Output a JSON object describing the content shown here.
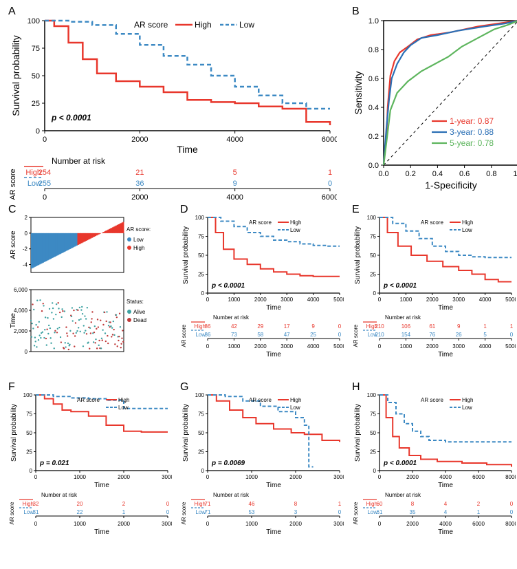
{
  "colors": {
    "high": "#e8372c",
    "low": "#3c89c3",
    "axis": "#000000",
    "bg": "#ffffff",
    "dash_low": "#3c89c3",
    "roc1": "#e8372c",
    "roc3": "#2a6fb5",
    "roc5": "#5db55d",
    "diag": "#000000",
    "alive": "#3ea2a2",
    "dead": "#c03a3a"
  },
  "fonts": {
    "axis_label": 14,
    "tick": 11,
    "legend": 12,
    "small_axis": 10,
    "small_tick": 8,
    "panel_label": 16,
    "pval": 12
  },
  "panelA": {
    "label": "A",
    "ylabel": "Survival probability",
    "xlabel": "Time",
    "legend_title": "AR score",
    "legend_items": [
      "High",
      "Low"
    ],
    "pval": "p < 0.0001",
    "xlim": [
      0,
      6000
    ],
    "xticks": [
      0,
      2000,
      4000,
      6000
    ],
    "ylim": [
      0,
      100
    ],
    "yticks": [
      0,
      25,
      50,
      75,
      100
    ],
    "curve_high": [
      [
        0,
        100
      ],
      [
        200,
        95
      ],
      [
        500,
        80
      ],
      [
        800,
        65
      ],
      [
        1100,
        52
      ],
      [
        1500,
        45
      ],
      [
        2000,
        40
      ],
      [
        2500,
        35
      ],
      [
        3000,
        28
      ],
      [
        3500,
        26
      ],
      [
        4000,
        25
      ],
      [
        4500,
        22
      ],
      [
        5000,
        20
      ],
      [
        5500,
        8
      ],
      [
        6000,
        5
      ]
    ],
    "curve_low": [
      [
        0,
        100
      ],
      [
        500,
        99
      ],
      [
        1000,
        96
      ],
      [
        1500,
        88
      ],
      [
        2000,
        78
      ],
      [
        2500,
        68
      ],
      [
        3000,
        60
      ],
      [
        3500,
        50
      ],
      [
        4000,
        40
      ],
      [
        4500,
        32
      ],
      [
        5000,
        25
      ],
      [
        5500,
        20
      ],
      [
        6000,
        20
      ]
    ],
    "risk_title": "Number at risk",
    "risk_x": [
      0,
      2000,
      4000,
      6000
    ],
    "risk_high": [
      254,
      21,
      5,
      1
    ],
    "risk_low": [
      255,
      36,
      9,
      0
    ]
  },
  "panelB": {
    "label": "B",
    "ylabel": "Sensitivity",
    "xlabel": "1-Specificity",
    "xlim": [
      0,
      1
    ],
    "ylim": [
      0,
      1
    ],
    "xticks": [
      0.0,
      0.2,
      0.4,
      0.6,
      0.8,
      1.0
    ],
    "yticks": [
      0.0,
      0.2,
      0.4,
      0.6,
      0.8,
      1.0
    ],
    "legend": [
      {
        "label": "1-year: 0.87",
        "color_key": "roc1"
      },
      {
        "label": "3-year: 0.88",
        "color_key": "roc3"
      },
      {
        "label": "5-year: 0.78",
        "color_key": "roc5"
      }
    ],
    "roc1": [
      [
        0,
        0
      ],
      [
        0.02,
        0.18
      ],
      [
        0.03,
        0.4
      ],
      [
        0.05,
        0.62
      ],
      [
        0.08,
        0.72
      ],
      [
        0.12,
        0.78
      ],
      [
        0.18,
        0.82
      ],
      [
        0.25,
        0.87
      ],
      [
        0.35,
        0.9
      ],
      [
        0.5,
        0.92
      ],
      [
        0.7,
        0.96
      ],
      [
        0.85,
        0.98
      ],
      [
        1.0,
        1.0
      ]
    ],
    "roc3": [
      [
        0,
        0
      ],
      [
        0.02,
        0.25
      ],
      [
        0.04,
        0.45
      ],
      [
        0.06,
        0.6
      ],
      [
        0.1,
        0.7
      ],
      [
        0.15,
        0.78
      ],
      [
        0.2,
        0.83
      ],
      [
        0.28,
        0.88
      ],
      [
        0.4,
        0.9
      ],
      [
        0.55,
        0.93
      ],
      [
        0.75,
        0.96
      ],
      [
        0.9,
        0.98
      ],
      [
        1.0,
        1.0
      ]
    ],
    "roc5": [
      [
        0,
        0
      ],
      [
        0.02,
        0.15
      ],
      [
        0.05,
        0.38
      ],
      [
        0.1,
        0.5
      ],
      [
        0.18,
        0.58
      ],
      [
        0.28,
        0.65
      ],
      [
        0.38,
        0.7
      ],
      [
        0.48,
        0.75
      ],
      [
        0.58,
        0.82
      ],
      [
        0.7,
        0.88
      ],
      [
        0.82,
        0.94
      ],
      [
        0.92,
        0.97
      ],
      [
        1.0,
        1.0
      ]
    ]
  },
  "panelC": {
    "label": "C",
    "top": {
      "ylabel": "AR score",
      "ylim": [
        -5,
        2
      ],
      "yticks": [
        -4,
        -2,
        0,
        2
      ],
      "legend_title": "AR score:",
      "legend_items": [
        "Low",
        "High"
      ],
      "split": 0.5
    },
    "bottom": {
      "ylabel": "Time",
      "ylim": [
        0,
        6000
      ],
      "yticks": [
        0,
        2000,
        4000,
        6000
      ],
      "legend_title": "Status:",
      "legend_items": [
        "Alive",
        "Dead"
      ]
    }
  },
  "smallKM": {
    "ylabel": "Survival probability",
    "xlabel": "Time",
    "legend_title": "AR score",
    "legend_items": [
      "High",
      "Low"
    ],
    "ylim": [
      0,
      100
    ],
    "yticks": [
      0,
      25,
      50,
      75,
      100
    ]
  },
  "panelD": {
    "label": "D",
    "pval": "p < 0.0001",
    "xlim": [
      0,
      5000
    ],
    "xticks": [
      0,
      1000,
      2000,
      3000,
      4000,
      5000
    ],
    "curve_high": [
      [
        0,
        100
      ],
      [
        300,
        80
      ],
      [
        600,
        58
      ],
      [
        1000,
        45
      ],
      [
        1500,
        38
      ],
      [
        2000,
        32
      ],
      [
        2500,
        28
      ],
      [
        3000,
        25
      ],
      [
        3500,
        23
      ],
      [
        4000,
        22
      ],
      [
        4500,
        22
      ],
      [
        5000,
        22
      ]
    ],
    "curve_low": [
      [
        0,
        100
      ],
      [
        500,
        95
      ],
      [
        1000,
        88
      ],
      [
        1500,
        80
      ],
      [
        2000,
        75
      ],
      [
        2500,
        70
      ],
      [
        3000,
        68
      ],
      [
        3500,
        65
      ],
      [
        4000,
        63
      ],
      [
        4500,
        62
      ],
      [
        5000,
        62
      ]
    ],
    "risk_title": "Number at risk",
    "risk_x": [
      0,
      1000,
      2000,
      3000,
      4000,
      5000
    ],
    "risk_high": [
      86,
      42,
      29,
      17,
      9,
      0
    ],
    "risk_low": [
      86,
      73,
      58,
      47,
      25,
      0
    ]
  },
  "panelE": {
    "label": "E",
    "pval": "p < 0.0001",
    "xlim": [
      0,
      5000
    ],
    "xticks": [
      0,
      1000,
      2000,
      3000,
      4000,
      5000
    ],
    "curve_high": [
      [
        0,
        100
      ],
      [
        300,
        80
      ],
      [
        700,
        62
      ],
      [
        1200,
        50
      ],
      [
        1800,
        42
      ],
      [
        2400,
        35
      ],
      [
        3000,
        30
      ],
      [
        3500,
        25
      ],
      [
        4000,
        18
      ],
      [
        4500,
        15
      ],
      [
        5000,
        15
      ]
    ],
    "curve_low": [
      [
        0,
        100
      ],
      [
        500,
        92
      ],
      [
        1000,
        82
      ],
      [
        1500,
        72
      ],
      [
        2000,
        62
      ],
      [
        2500,
        55
      ],
      [
        3000,
        50
      ],
      [
        3500,
        48
      ],
      [
        4000,
        47
      ],
      [
        4500,
        47
      ],
      [
        5000,
        47
      ]
    ],
    "risk_title": "Number at risk",
    "risk_x": [
      0,
      1000,
      2000,
      3000,
      4000,
      5000
    ],
    "risk_high": [
      210,
      106,
      61,
      9,
      1,
      1
    ],
    "risk_low": [
      210,
      154,
      76,
      26,
      5,
      0
    ]
  },
  "panelF": {
    "label": "F",
    "pval": "p = 0.021",
    "xlim": [
      0,
      3000
    ],
    "xticks": [
      0,
      1000,
      2000,
      3000
    ],
    "curve_high": [
      [
        0,
        100
      ],
      [
        200,
        95
      ],
      [
        400,
        88
      ],
      [
        600,
        80
      ],
      [
        800,
        78
      ],
      [
        1200,
        72
      ],
      [
        1600,
        60
      ],
      [
        2000,
        52
      ],
      [
        2400,
        51
      ],
      [
        3000,
        51
      ]
    ],
    "curve_low": [
      [
        0,
        100
      ],
      [
        400,
        98
      ],
      [
        800,
        96
      ],
      [
        1200,
        95
      ],
      [
        1600,
        93
      ],
      [
        2000,
        82
      ],
      [
        2400,
        82
      ],
      [
        3000,
        82
      ]
    ],
    "risk_title": "Number at risk",
    "risk_x": [
      0,
      1000,
      2000,
      3000
    ],
    "risk_high": [
      32,
      20,
      2,
      0
    ],
    "risk_low": [
      31,
      22,
      1,
      0
    ]
  },
  "panelG": {
    "label": "G",
    "pval": "p = 0.0069",
    "xlim": [
      0,
      3000
    ],
    "xticks": [
      0,
      1000,
      2000,
      3000
    ],
    "curve_high": [
      [
        0,
        100
      ],
      [
        200,
        92
      ],
      [
        500,
        80
      ],
      [
        800,
        70
      ],
      [
        1100,
        62
      ],
      [
        1500,
        55
      ],
      [
        1900,
        50
      ],
      [
        2200,
        48
      ],
      [
        2600,
        40
      ],
      [
        3000,
        38
      ]
    ],
    "curve_low": [
      [
        0,
        100
      ],
      [
        400,
        98
      ],
      [
        800,
        92
      ],
      [
        1200,
        85
      ],
      [
        1600,
        78
      ],
      [
        2000,
        70
      ],
      [
        2200,
        60
      ],
      [
        2300,
        5
      ],
      [
        2400,
        5
      ]
    ],
    "risk_title": "Number at risk",
    "risk_x": [
      0,
      1000,
      2000,
      3000
    ],
    "risk_high": [
      71,
      46,
      8,
      1
    ],
    "risk_low": [
      71,
      53,
      3,
      0
    ]
  },
  "panelH": {
    "label": "H",
    "pval": "p < 0.0001",
    "xlim": [
      0,
      8000
    ],
    "xticks": [
      0,
      2000,
      4000,
      6000,
      8000
    ],
    "curve_high": [
      [
        0,
        100
      ],
      [
        400,
        70
      ],
      [
        800,
        45
      ],
      [
        1200,
        30
      ],
      [
        1800,
        20
      ],
      [
        2500,
        15
      ],
      [
        3500,
        12
      ],
      [
        5000,
        10
      ],
      [
        6500,
        8
      ],
      [
        8000,
        5
      ]
    ],
    "curve_low": [
      [
        0,
        100
      ],
      [
        500,
        90
      ],
      [
        1000,
        75
      ],
      [
        1500,
        62
      ],
      [
        2000,
        52
      ],
      [
        2500,
        45
      ],
      [
        3000,
        40
      ],
      [
        4000,
        38
      ],
      [
        5500,
        38
      ],
      [
        7000,
        38
      ],
      [
        8000,
        38
      ]
    ],
    "risk_title": "Number at risk",
    "risk_x": [
      0,
      2000,
      4000,
      6000,
      8000
    ],
    "risk_high": [
      60,
      8,
      4,
      2,
      0
    ],
    "risk_low": [
      61,
      35,
      4,
      1,
      0
    ]
  }
}
